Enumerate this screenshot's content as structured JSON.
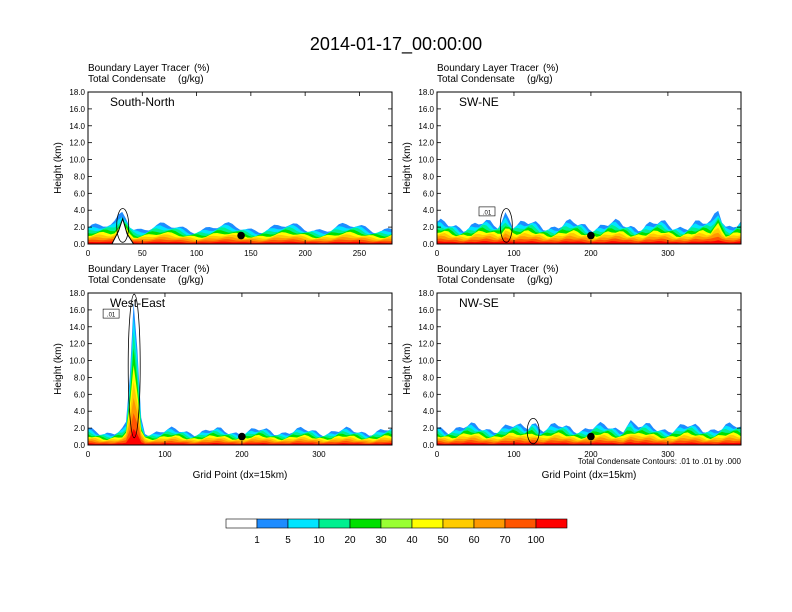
{
  "title": "2014-01-17_00:00:00",
  "colors": {
    "levels": [
      "#ffffff",
      "#1e8cff",
      "#00e5ff",
      "#00f090",
      "#00e000",
      "#99ff33",
      "#ffff00",
      "#ffcc00",
      "#ff9900",
      "#ff5500",
      "#ff0000"
    ],
    "contour": "#000000",
    "frame": "#000000"
  },
  "colorbar": {
    "labels": [
      "1",
      "5",
      "10",
      "20",
      "30",
      "40",
      "50",
      "60",
      "70",
      "100"
    ]
  },
  "contour_note": "Total Condensate Contours: .01 to .01 by .000",
  "chart_data": [
    {
      "type": "heatmap",
      "panel": "top-left",
      "subtitle_line1": "Boundary Layer Tracer",
      "subtitle_units1": "(%)",
      "subtitle_line2": "Total Condensate",
      "subtitle_units2": "(g/kg)",
      "cross_section": "South-North",
      "xlim": [
        0,
        280
      ],
      "xticks": [
        "0",
        "50",
        "100",
        "150",
        "200",
        "250"
      ],
      "xtick_values": [
        0,
        50,
        100,
        150,
        200,
        250
      ],
      "ylim": [
        0,
        18
      ],
      "yticks": [
        "0.0",
        "2.0",
        "4.0",
        "6.0",
        "8.0",
        "10.0",
        "12.0",
        "14.0",
        "16.0",
        "18.0"
      ],
      "ylabel": "Height (km)",
      "xlabel": "",
      "marker_x": 141,
      "marker_y": 1.0,
      "pbl_top_km": 1.9,
      "spikes": [
        [
          32,
          4.0
        ]
      ],
      "terrain": [
        [
          0,
          0
        ],
        [
          22,
          0
        ],
        [
          28,
          1.5
        ],
        [
          32,
          3.0
        ],
        [
          36,
          1.2
        ],
        [
          42,
          0
        ],
        [
          280,
          0
        ]
      ],
      "contour_label": "",
      "contour_label_x": 0,
      "contour_label_y": 0
    },
    {
      "type": "heatmap",
      "panel": "top-right",
      "subtitle_line1": "Boundary Layer Tracer",
      "subtitle_units1": "(%)",
      "subtitle_line2": "Total Condensate",
      "subtitle_units2": "(g/kg)",
      "cross_section": "SW-NE",
      "xlim": [
        0,
        395
      ],
      "xticks": [
        "0",
        "100",
        "200",
        "300"
      ],
      "xtick_values": [
        0,
        100,
        200,
        300
      ],
      "ylim": [
        0,
        18
      ],
      "yticks": [
        "0.0",
        "2.0",
        "4.0",
        "6.0",
        "8.0",
        "10.0",
        "12.0",
        "14.0",
        "16.0",
        "18.0"
      ],
      "ylabel": "Height (km)",
      "xlabel": "",
      "marker_x": 200,
      "marker_y": 1.0,
      "pbl_top_km": 2.2,
      "spikes": [
        [
          90,
          4.0
        ],
        [
          365,
          4.5
        ]
      ],
      "terrain": [
        [
          0,
          0
        ],
        [
          395,
          0
        ]
      ],
      "contour_label": ".01",
      "contour_label_x": 65,
      "contour_label_y": 3.8
    },
    {
      "type": "heatmap",
      "panel": "bottom-left",
      "subtitle_line1": "Boundary Layer Tracer",
      "subtitle_units1": "(%)",
      "subtitle_line2": "Total Condensate",
      "subtitle_units2": "(g/kg)",
      "cross_section": "West-East",
      "xlim": [
        0,
        395
      ],
      "xticks": [
        "0",
        "100",
        "200",
        "300"
      ],
      "xtick_values": [
        0,
        100,
        200,
        300
      ],
      "ylim": [
        0,
        18
      ],
      "yticks": [
        "0.0",
        "2.0",
        "4.0",
        "6.0",
        "8.0",
        "10.0",
        "12.0",
        "14.0",
        "16.0",
        "18.0"
      ],
      "ylabel": "Height (km)",
      "xlabel": "Grid Point (dx=15km)",
      "marker_x": 200,
      "marker_y": 1.0,
      "pbl_top_km": 1.6,
      "spikes": [
        [
          60,
          17.0
        ]
      ],
      "terrain": [
        [
          0,
          0
        ],
        [
          395,
          0
        ]
      ],
      "contour_label": ".01",
      "contour_label_x": 30,
      "contour_label_y": 15.5
    },
    {
      "type": "heatmap",
      "panel": "bottom-right",
      "subtitle_line1": "Boundary Layer Tracer",
      "subtitle_units1": "(%)",
      "subtitle_line2": "Total Condensate",
      "subtitle_units2": "(g/kg)",
      "cross_section": "NW-SE",
      "xlim": [
        0,
        395
      ],
      "xticks": [
        "0",
        "100",
        "200",
        "300"
      ],
      "xtick_values": [
        0,
        100,
        200,
        300
      ],
      "ylim": [
        0,
        18
      ],
      "yticks": [
        "0.0",
        "2.0",
        "4.0",
        "6.0",
        "8.0",
        "10.0",
        "12.0",
        "14.0",
        "16.0",
        "18.0"
      ],
      "ylabel": "Height (km)",
      "xlabel": "Grid Point (dx=15km)",
      "marker_x": 200,
      "marker_y": 1.0,
      "pbl_top_km": 2.0,
      "spikes": [
        [
          125,
          3.0
        ],
        [
          250,
          3.0
        ]
      ],
      "terrain": [
        [
          0,
          0
        ],
        [
          395,
          0
        ]
      ],
      "contour_label": "",
      "contour_label_x": 0,
      "contour_label_y": 0
    }
  ]
}
